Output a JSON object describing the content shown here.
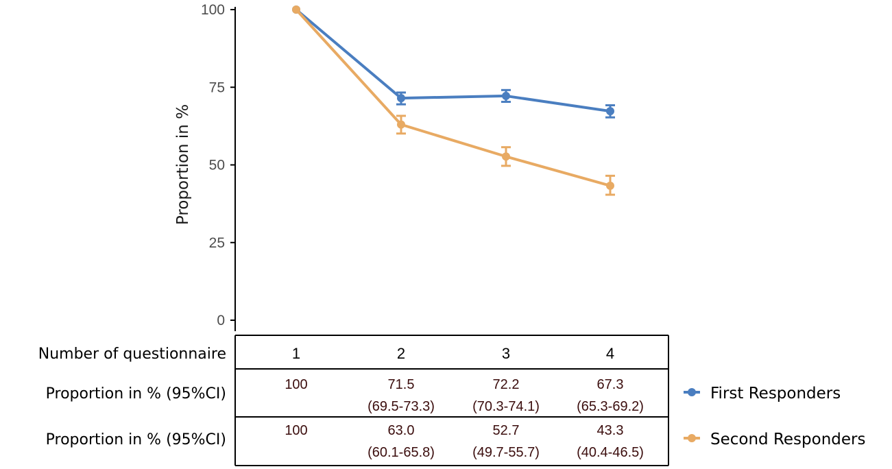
{
  "chart_data": {
    "type": "line",
    "title": "",
    "ylabel": "Proportion in %",
    "xlabel": "Number of questionnaire",
    "ylim": [
      0,
      100
    ],
    "yticks": [
      0,
      25,
      50,
      75,
      100
    ],
    "x": [
      1,
      2,
      3,
      4
    ],
    "series": [
      {
        "name": "First Responders",
        "color": "#4a7ec0",
        "values": [
          100,
          71.5,
          72.2,
          67.3
        ],
        "ci_low": [
          100,
          69.5,
          70.3,
          65.3
        ],
        "ci_high": [
          100,
          73.3,
          74.1,
          69.2
        ]
      },
      {
        "name": "Second Responders",
        "color": "#e8aa63",
        "values": [
          100,
          63.0,
          52.7,
          43.3
        ],
        "ci_low": [
          100,
          60.1,
          49.7,
          40.4
        ],
        "ci_high": [
          100,
          65.8,
          55.7,
          46.5
        ]
      }
    ],
    "grid": false,
    "legend_position": "right"
  },
  "table": {
    "header_label": "Number of questionnaire",
    "columns": [
      "1",
      "2",
      "3",
      "4"
    ],
    "rows": [
      {
        "label": "Proportion in % (95%CI)",
        "cells": [
          {
            "value": "100",
            "ci": ""
          },
          {
            "value": "71.5",
            "ci": "(69.5-73.3)"
          },
          {
            "value": "72.2",
            "ci": "(70.3-74.1)"
          },
          {
            "value": "67.3",
            "ci": "(65.3-69.2)"
          }
        ],
        "legend": "First Responders"
      },
      {
        "label": "Proportion in % (95%CI)",
        "cells": [
          {
            "value": "100",
            "ci": ""
          },
          {
            "value": "63.0",
            "ci": "(60.1-65.8)"
          },
          {
            "value": "52.7",
            "ci": "(49.7-55.7)"
          },
          {
            "value": "43.3",
            "ci": "(40.4-46.5)"
          }
        ],
        "legend": "Second Responders"
      }
    ]
  }
}
